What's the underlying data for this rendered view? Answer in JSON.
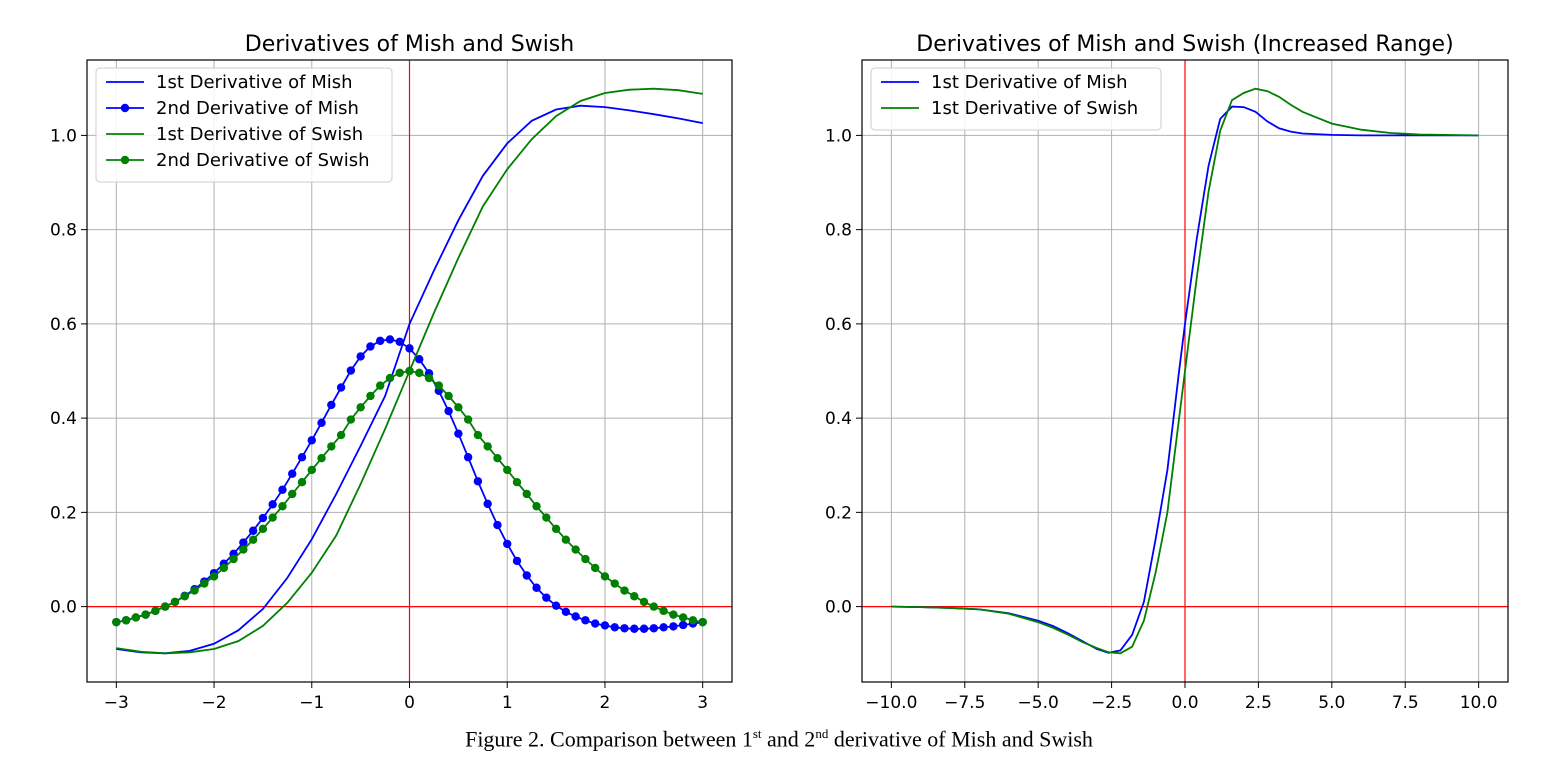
{
  "caption": {
    "prefix": "Figure 2. Comparison between 1",
    "sup1": "st",
    "middle": " and 2",
    "sup2": "nd",
    "suffix": " derivative of Mish and Swish"
  },
  "chart_data": [
    {
      "type": "line",
      "title": "Derivatives of Mish and Swish",
      "xlim": [
        -3.3,
        3.3
      ],
      "ylim": [
        -0.16,
        1.16
      ],
      "xticks": [
        -3,
        -2,
        -1,
        0,
        1,
        2,
        3
      ],
      "xtick_labels": [
        "−3",
        "−2",
        "−1",
        "0",
        "1",
        "2",
        "3"
      ],
      "yticks": [
        0.0,
        0.2,
        0.4,
        0.6,
        0.8,
        1.0
      ],
      "ytick_labels": [
        "0.0",
        "0.2",
        "0.4",
        "0.6",
        "0.8",
        "1.0"
      ],
      "grid": true,
      "axhline": 0,
      "axvline": 0,
      "legend_position": "upper-left",
      "series": [
        {
          "name": "1st Derivative of Mish",
          "color": "#0000ff",
          "marker": "none",
          "x": [
            -3.0,
            -2.75,
            -2.5,
            -2.25,
            -2.0,
            -1.75,
            -1.5,
            -1.25,
            -1.0,
            -0.75,
            -0.5,
            -0.25,
            0.0,
            0.25,
            0.5,
            0.75,
            1.0,
            1.25,
            1.5,
            1.75,
            2.0,
            2.25,
            2.5,
            2.75,
            3.0
          ],
          "y": [
            -0.09,
            -0.097,
            -0.099,
            -0.094,
            -0.079,
            -0.05,
            -0.005,
            0.061,
            0.143,
            0.239,
            0.341,
            0.447,
            0.6,
            0.713,
            0.82,
            0.914,
            0.983,
            1.031,
            1.055,
            1.063,
            1.06,
            1.053,
            1.045,
            1.036,
            1.026
          ]
        },
        {
          "name": "2nd Derivative of Mish",
          "color": "#0000ff",
          "marker": "circle",
          "x": [
            -3.0,
            -2.9,
            -2.8,
            -2.7,
            -2.6,
            -2.5,
            -2.4,
            -2.3,
            -2.2,
            -2.1,
            -2.0,
            -1.9,
            -1.8,
            -1.7,
            -1.6,
            -1.5,
            -1.4,
            -1.3,
            -1.2,
            -1.1,
            -1.0,
            -0.9,
            -0.8,
            -0.7,
            -0.6,
            -0.5,
            -0.4,
            -0.3,
            -0.2,
            -0.1,
            0.0,
            0.1,
            0.2,
            0.3,
            0.4,
            0.5,
            0.6,
            0.7,
            0.8,
            0.9,
            1.0,
            1.1,
            1.2,
            1.3,
            1.4,
            1.5,
            1.6,
            1.7,
            1.8,
            1.9,
            2.0,
            2.1,
            2.2,
            2.3,
            2.4,
            2.5,
            2.6,
            2.7,
            2.8,
            2.9,
            3.0
          ],
          "y": [
            -0.033,
            -0.029,
            -0.023,
            -0.017,
            -0.009,
            0.0,
            0.01,
            0.023,
            0.037,
            0.053,
            0.071,
            0.091,
            0.112,
            0.136,
            0.161,
            0.188,
            0.217,
            0.248,
            0.282,
            0.317,
            0.353,
            0.39,
            0.428,
            0.465,
            0.501,
            0.531,
            0.552,
            0.564,
            0.567,
            0.562,
            0.548,
            0.525,
            0.495,
            0.458,
            0.415,
            0.367,
            0.317,
            0.266,
            0.218,
            0.173,
            0.133,
            0.097,
            0.066,
            0.04,
            0.019,
            0.002,
            -0.011,
            -0.021,
            -0.029,
            -0.036,
            -0.04,
            -0.044,
            -0.046,
            -0.047,
            -0.047,
            -0.046,
            -0.044,
            -0.042,
            -0.039,
            -0.036,
            -0.033
          ]
        },
        {
          "name": "1st Derivative of Swish",
          "color": "#008000",
          "marker": "none",
          "x": [
            -3.0,
            -2.75,
            -2.5,
            -2.25,
            -2.0,
            -1.75,
            -1.5,
            -1.25,
            -1.0,
            -0.75,
            -0.5,
            -0.25,
            0.0,
            0.25,
            0.5,
            0.75,
            1.0,
            1.25,
            1.5,
            1.75,
            2.0,
            2.25,
            2.5,
            2.75,
            3.0
          ],
          "y": [
            -0.088,
            -0.096,
            -0.099,
            -0.097,
            -0.09,
            -0.073,
            -0.041,
            0.008,
            0.072,
            0.151,
            0.26,
            0.377,
            0.5,
            0.623,
            0.74,
            0.849,
            0.928,
            0.992,
            1.041,
            1.073,
            1.09,
            1.097,
            1.099,
            1.096,
            1.088
          ]
        },
        {
          "name": "2nd Derivative of Swish",
          "color": "#008000",
          "marker": "circle",
          "x": [
            -3.0,
            -2.9,
            -2.8,
            -2.7,
            -2.6,
            -2.5,
            -2.4,
            -2.3,
            -2.2,
            -2.1,
            -2.0,
            -1.9,
            -1.8,
            -1.7,
            -1.6,
            -1.5,
            -1.4,
            -1.3,
            -1.2,
            -1.1,
            -1.0,
            -0.9,
            -0.8,
            -0.7,
            -0.6,
            -0.5,
            -0.4,
            -0.3,
            -0.2,
            -0.1,
            0.0,
            0.1,
            0.2,
            0.3,
            0.4,
            0.5,
            0.6,
            0.7,
            0.8,
            0.9,
            1.0,
            1.1,
            1.2,
            1.3,
            1.4,
            1.5,
            1.6,
            1.7,
            1.8,
            1.9,
            2.0,
            2.1,
            2.2,
            2.3,
            2.4,
            2.5,
            2.6,
            2.7,
            2.8,
            2.9,
            3.0
          ],
          "y": [
            -0.033,
            -0.029,
            -0.023,
            -0.017,
            -0.009,
            0.0,
            0.01,
            0.022,
            0.034,
            0.049,
            0.064,
            0.082,
            0.101,
            0.121,
            0.142,
            0.165,
            0.189,
            0.213,
            0.239,
            0.264,
            0.29,
            0.315,
            0.34,
            0.364,
            0.397,
            0.423,
            0.447,
            0.469,
            0.485,
            0.496,
            0.5,
            0.496,
            0.485,
            0.469,
            0.447,
            0.423,
            0.397,
            0.364,
            0.34,
            0.315,
            0.29,
            0.264,
            0.239,
            0.213,
            0.189,
            0.165,
            0.142,
            0.121,
            0.101,
            0.082,
            0.064,
            0.049,
            0.034,
            0.022,
            0.01,
            0.0,
            -0.009,
            -0.017,
            -0.023,
            -0.029,
            -0.033
          ]
        }
      ]
    },
    {
      "type": "line",
      "title": "Derivatives of Mish and Swish (Increased Range)",
      "xlim": [
        -11.0,
        11.0
      ],
      "ylim": [
        -0.16,
        1.16
      ],
      "xticks": [
        -10,
        -7.5,
        -5,
        -2.5,
        0,
        2.5,
        5,
        7.5,
        10
      ],
      "xtick_labels": [
        "−10.0",
        "−7.5",
        "−5.0",
        "−2.5",
        "0.0",
        "2.5",
        "5.0",
        "7.5",
        "10.0"
      ],
      "yticks": [
        0.0,
        0.2,
        0.4,
        0.6,
        0.8,
        1.0
      ],
      "ytick_labels": [
        "0.0",
        "0.2",
        "0.4",
        "0.6",
        "0.8",
        "1.0"
      ],
      "grid": true,
      "axhline": 0,
      "axvline": 0,
      "legend_position": "upper-left",
      "series": [
        {
          "name": "1st Derivative of Mish",
          "color": "#0000ff",
          "marker": "none",
          "x": [
            -10.0,
            -9.0,
            -8.0,
            -7.0,
            -6.0,
            -5.0,
            -4.5,
            -4.0,
            -3.5,
            -3.0,
            -2.6,
            -2.2,
            -1.8,
            -1.4,
            -1.0,
            -0.6,
            -0.2,
            0.0,
            0.4,
            0.8,
            1.2,
            1.6,
            2.0,
            2.4,
            2.8,
            3.2,
            3.6,
            4.0,
            5.0,
            6.0,
            7.0,
            8.0,
            10.0
          ],
          "y": [
            0.0,
            -0.001,
            -0.003,
            -0.006,
            -0.014,
            -0.03,
            -0.041,
            -0.056,
            -0.073,
            -0.09,
            -0.098,
            -0.093,
            -0.06,
            0.01,
            0.143,
            0.29,
            0.5,
            0.6,
            0.78,
            0.935,
            1.035,
            1.061,
            1.06,
            1.05,
            1.03,
            1.015,
            1.008,
            1.004,
            1.001,
            1.0,
            1.0,
            1.0,
            1.0
          ]
        },
        {
          "name": "1st Derivative of Swish",
          "color": "#008000",
          "marker": "none",
          "x": [
            -10.0,
            -9.0,
            -8.0,
            -7.0,
            -6.0,
            -5.0,
            -4.5,
            -4.0,
            -3.5,
            -3.0,
            -2.6,
            -2.2,
            -1.8,
            -1.4,
            -1.0,
            -0.6,
            -0.2,
            0.0,
            0.4,
            0.8,
            1.2,
            1.6,
            2.0,
            2.4,
            2.8,
            3.2,
            3.6,
            4.0,
            5.0,
            6.0,
            7.0,
            8.0,
            10.0
          ],
          "y": [
            0.0,
            -0.001,
            -0.003,
            -0.006,
            -0.015,
            -0.033,
            -0.045,
            -0.059,
            -0.075,
            -0.088,
            -0.097,
            -0.099,
            -0.085,
            -0.03,
            0.072,
            0.2,
            0.4,
            0.5,
            0.697,
            0.88,
            1.01,
            1.075,
            1.09,
            1.099,
            1.094,
            1.082,
            1.065,
            1.05,
            1.025,
            1.012,
            1.005,
            1.002,
            1.0
          ]
        }
      ]
    }
  ]
}
